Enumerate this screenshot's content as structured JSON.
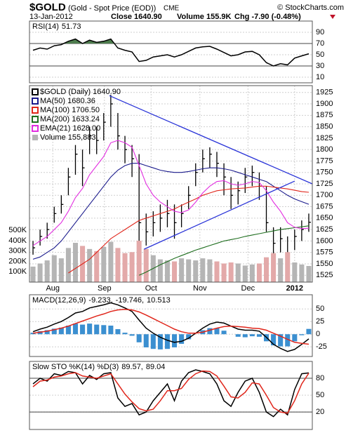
{
  "header": {
    "title": "$GOLD",
    "subtitle": "(Gold - Spot Price (EOD))",
    "exchange": "CME",
    "source": "© StockCharts.com",
    "date": "13-Jan-2012",
    "close": "Close 1640.90",
    "volume": "Volume 155.9K",
    "change": "Chg -7.90 (-0.48%)"
  },
  "x_axis": {
    "x": [
      0,
      1,
      2,
      3,
      4,
      5,
      6,
      7,
      8,
      9,
      10,
      11,
      12,
      13,
      14,
      15,
      16,
      17,
      18,
      19,
      20,
      21,
      22,
      23,
      24,
      25,
      26,
      27,
      28,
      29,
      30,
      31,
      32,
      33,
      34,
      35,
      36,
      37,
      38,
      39
    ],
    "xlim": [
      -0.5,
      39.5
    ],
    "xticks": [
      {
        "value": 2.8,
        "label": "Aug"
      },
      {
        "value": 10.1,
        "label": "Sep"
      },
      {
        "value": 16.7,
        "label": "Oct"
      },
      {
        "value": 23.6,
        "label": "Nov"
      },
      {
        "value": 30.4,
        "label": "Dec"
      },
      {
        "value": 37,
        "label": "2012"
      }
    ]
  },
  "chart_data": [
    {
      "type": "line",
      "title": "RSI(14)",
      "ylim": [
        0,
        110
      ],
      "yticks": [
        90,
        70,
        50,
        30,
        10
      ],
      "reference_lines": [
        70,
        30
      ],
      "fill_above": {
        "level": 70,
        "color": "#4e7d4e"
      },
      "series": [
        {
          "name": "51.73",
          "color": "#000000",
          "values": [
            58,
            62,
            60,
            66,
            68,
            74,
            78,
            70,
            76,
            72,
            74,
            78,
            62,
            58,
            55,
            38,
            40,
            46,
            48,
            50,
            46,
            50,
            56,
            62,
            64,
            65,
            60,
            54,
            48,
            50,
            55,
            56,
            50,
            36,
            30,
            34,
            32,
            44,
            48,
            51.73
          ]
        }
      ]
    },
    {
      "type": "ohlc",
      "ylim": [
        1510,
        1940
      ],
      "yticks": [
        1525,
        1550,
        1575,
        1600,
        1625,
        1650,
        1675,
        1700,
        1725,
        1750,
        1775,
        1800,
        1825,
        1850,
        1875,
        1900,
        1925
      ],
      "y2lim": [
        0,
        1900000
      ],
      "y2ticks": [
        {
          "value": 100000,
          "label": "100K"
        },
        {
          "value": 200000,
          "label": "200K"
        },
        {
          "value": 300000,
          "label": "300K"
        },
        {
          "value": 400000,
          "label": "400K"
        },
        {
          "value": 500000,
          "label": "500K"
        }
      ],
      "grid": true,
      "series": [
        {
          "name": "$GOLD (Daily) 1640.90",
          "color": "#000000",
          "high": [
            1600,
            1625,
            1640,
            1675,
            1700,
            1760,
            1810,
            1800,
            1850,
            1850,
            1880,
            1920,
            1880,
            1830,
            1810,
            1790,
            1660,
            1665,
            1680,
            1690,
            1680,
            1680,
            1720,
            1770,
            1800,
            1805,
            1795,
            1770,
            1740,
            1730,
            1760,
            1765,
            1750,
            1720,
            1630,
            1630,
            1610,
            1625,
            1645,
            1660
          ],
          "low": [
            1570,
            1590,
            1605,
            1640,
            1660,
            1700,
            1745,
            1720,
            1790,
            1790,
            1820,
            1850,
            1800,
            1770,
            1740,
            1535,
            1590,
            1610,
            1620,
            1630,
            1605,
            1630,
            1670,
            1720,
            1750,
            1760,
            1740,
            1700,
            1670,
            1680,
            1705,
            1720,
            1690,
            1620,
            1560,
            1575,
            1525,
            1580,
            1600,
            1620
          ],
          "values": [
            1585,
            1610,
            1625,
            1660,
            1680,
            1740,
            1790,
            1760,
            1830,
            1820,
            1860,
            1900,
            1830,
            1800,
            1780,
            1640,
            1620,
            1640,
            1650,
            1660,
            1640,
            1660,
            1700,
            1750,
            1780,
            1790,
            1770,
            1740,
            1700,
            1710,
            1740,
            1750,
            1720,
            1640,
            1595,
            1605,
            1565,
            1610,
            1625,
            1641
          ]
        },
        {
          "name": "MA(50) 1680.36",
          "color": "#1a1a8c",
          "values": [
            1560,
            1565,
            1575,
            1585,
            1600,
            1620,
            1640,
            1660,
            1680,
            1700,
            1720,
            1740,
            1755,
            1765,
            1770,
            1770,
            1765,
            1760,
            1755,
            1752,
            1750,
            1750,
            1752,
            1755,
            1758,
            1760,
            1760,
            1758,
            1755,
            1750,
            1745,
            1740,
            1735,
            1730,
            1720,
            1710,
            1700,
            1692,
            1686,
            1680.36
          ]
        },
        {
          "name": "MA(100) 1706.50",
          "color": "#e0261b",
          "values": [
            null,
            null,
            null,
            null,
            null,
            1530,
            1540,
            1550,
            1560,
            1575,
            1590,
            1605,
            1615,
            1625,
            1635,
            1645,
            1650,
            1655,
            1660,
            1665,
            1670,
            1678,
            1685,
            1692,
            1700,
            1705,
            1710,
            1712,
            1714,
            1715,
            1716,
            1718,
            1720,
            1720,
            1718,
            1716,
            1714,
            1711,
            1708,
            1706.5
          ]
        },
        {
          "name": "MA(200) 1633.24",
          "color": "#1f6e1f",
          "values": [
            null,
            null,
            null,
            null,
            null,
            null,
            null,
            null,
            null,
            null,
            null,
            null,
            null,
            null,
            null,
            1525,
            1532,
            1540,
            1548,
            1555,
            1562,
            1568,
            1574,
            1580,
            1585,
            1590,
            1595,
            1600,
            1603,
            1606,
            1610,
            1613,
            1616,
            1619,
            1622,
            1625,
            1627,
            1629,
            1631,
            1633.24
          ]
        },
        {
          "name": "EMA(21) 1628.00",
          "color": "#e22ee0",
          "values": [
            1590,
            1600,
            1610,
            1625,
            1640,
            1665,
            1695,
            1715,
            1745,
            1765,
            1785,
            1815,
            1820,
            1815,
            1805,
            1765,
            1725,
            1700,
            1685,
            1675,
            1665,
            1662,
            1668,
            1685,
            1705,
            1720,
            1730,
            1732,
            1725,
            1722,
            1725,
            1730,
            1728,
            1710,
            1685,
            1665,
            1640,
            1630,
            1627,
            1628
          ]
        },
        {
          "name": "Volume 155,883",
          "type": "bar",
          "axis": "y2",
          "color": "#b5b5b5",
          "down_color": "#e3a9a9",
          "values": [
            150000,
            180000,
            210000,
            260000,
            230000,
            330000,
            380000,
            350000,
            320000,
            300000,
            340000,
            390000,
            330000,
            280000,
            290000,
            400000,
            320000,
            260000,
            220000,
            210000,
            200000,
            230000,
            220000,
            210000,
            230000,
            220000,
            200000,
            180000,
            190000,
            180000,
            160000,
            170000,
            180000,
            240000,
            280000,
            230000,
            290000,
            190000,
            170000,
            155883
          ]
        }
      ],
      "trendlines": [
        {
          "color": "#2b35d8",
          "points": [
            [
              10.8,
              1918
            ],
            [
              39.5,
              1725
            ]
          ]
        },
        {
          "color": "#2b35d8",
          "points": [
            [
              15.7,
              1582
            ],
            [
              37,
              1731
            ]
          ]
        }
      ]
    },
    {
      "type": "line",
      "title": "MACD(12,26,9)",
      "ylim": [
        -44,
        78
      ],
      "yticks": [
        50,
        25,
        0,
        -25
      ],
      "series": [
        {
          "name": "-9.233,",
          "color": "#000000",
          "values": [
            5,
            10,
            14,
            20,
            25,
            33,
            42,
            45,
            52,
            55,
            58,
            62,
            58,
            52,
            45,
            28,
            12,
            2,
            -6,
            -12,
            -16,
            -14,
            -8,
            2,
            12,
            20,
            24,
            22,
            16,
            10,
            8,
            8,
            6,
            -6,
            -20,
            -28,
            -34,
            -30,
            -20,
            -9.233
          ]
        },
        {
          "name": "-19.746,",
          "color": "#e0261b",
          "values": [
            2,
            4,
            6,
            9,
            12,
            16,
            21,
            26,
            31,
            36,
            40,
            45,
            48,
            49,
            48,
            44,
            38,
            31,
            24,
            17,
            10,
            5,
            2,
            2,
            4,
            8,
            12,
            15,
            16,
            15,
            14,
            12,
            11,
            8,
            2,
            -4,
            -10,
            -16,
            -18,
            -19.746
          ]
        },
        {
          "name": "10.513",
          "type": "bar",
          "color": "#3b8fd0",
          "values": [
            3,
            6,
            8,
            11,
            13,
            17,
            21,
            19,
            21,
            19,
            18,
            17,
            10,
            3,
            -3,
            -16,
            -26,
            -29,
            -30,
            -29,
            -26,
            -19,
            -10,
            0,
            8,
            12,
            12,
            7,
            0,
            -5,
            -6,
            -4,
            -5,
            -14,
            -22,
            -24,
            -24,
            -14,
            -2,
            10.513
          ]
        }
      ]
    },
    {
      "type": "line",
      "title": "Slow STO %K(14) %D(3)",
      "ylim": [
        -11,
        110
      ],
      "yticks": [
        80,
        50,
        20
      ],
      "reference_lines": [
        80,
        20
      ],
      "series": [
        {
          "name": "89.57,",
          "color": "#000000",
          "values": [
            70,
            80,
            75,
            88,
            85,
            92,
            90,
            70,
            85,
            78,
            88,
            90,
            45,
            30,
            35,
            15,
            20,
            40,
            55,
            70,
            40,
            75,
            90,
            95,
            92,
            88,
            70,
            40,
            30,
            55,
            75,
            80,
            55,
            20,
            12,
            25,
            15,
            60,
            88,
            89.57
          ]
        },
        {
          "name": "89.04",
          "color": "#e0261b",
          "values": [
            65,
            75,
            77,
            82,
            84,
            88,
            90,
            84,
            82,
            80,
            84,
            88,
            70,
            52,
            38,
            26,
            22,
            25,
            40,
            58,
            58,
            62,
            78,
            88,
            93,
            92,
            84,
            66,
            47,
            45,
            55,
            72,
            70,
            50,
            28,
            20,
            18,
            40,
            70,
            89.04
          ]
        }
      ]
    }
  ]
}
